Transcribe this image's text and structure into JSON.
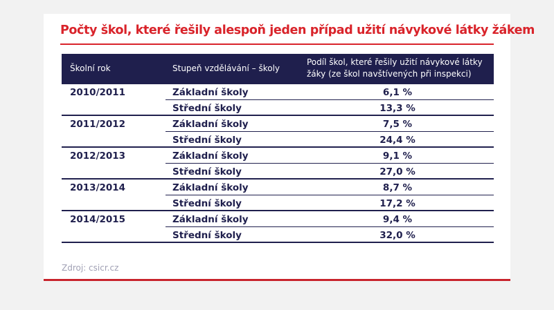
{
  "title": "Počty škol, které řešily alespoň jeden případ užití návykové látky žákem",
  "source": "Zdroj: csicr.cz",
  "colors": {
    "accent": "#d9232a",
    "header_bg": "#1f1f4d",
    "text": "#1f1f4d"
  },
  "chart_data": {
    "type": "table",
    "title": "Počty škol, které řešily alespoň jeden případ užití návykové látky žákem",
    "columns": [
      "Školní rok",
      "Stupeň vzdělávání – školy",
      "Podíl škol, které řešily užití návykové látky žáky (ze škol navštívených při inspekci)"
    ],
    "rows": [
      [
        "2010/2011",
        "Základní školy",
        "6,1 %"
      ],
      [
        "",
        "Střední školy",
        "13,3 %"
      ],
      [
        "2011/2012",
        "Základní školy",
        "7,5 %"
      ],
      [
        "",
        "Střední školy",
        "24,4 %"
      ],
      [
        "2012/2013",
        "Základní školy",
        "9,1 %"
      ],
      [
        "",
        "Střední školy",
        "27,0 %"
      ],
      [
        "2013/2014",
        "Základní školy",
        "8,7 %"
      ],
      [
        "",
        "Střední školy",
        "17,2 %"
      ],
      [
        "2014/2015",
        "Základní školy",
        "9,4 %"
      ],
      [
        "",
        "Střední školy",
        "32,0 %"
      ]
    ]
  },
  "header_col3_lines": [
    "Podíl škol, které řešily užití návykové látky",
    "žáky (ze škol navštívených při inspekci)"
  ]
}
